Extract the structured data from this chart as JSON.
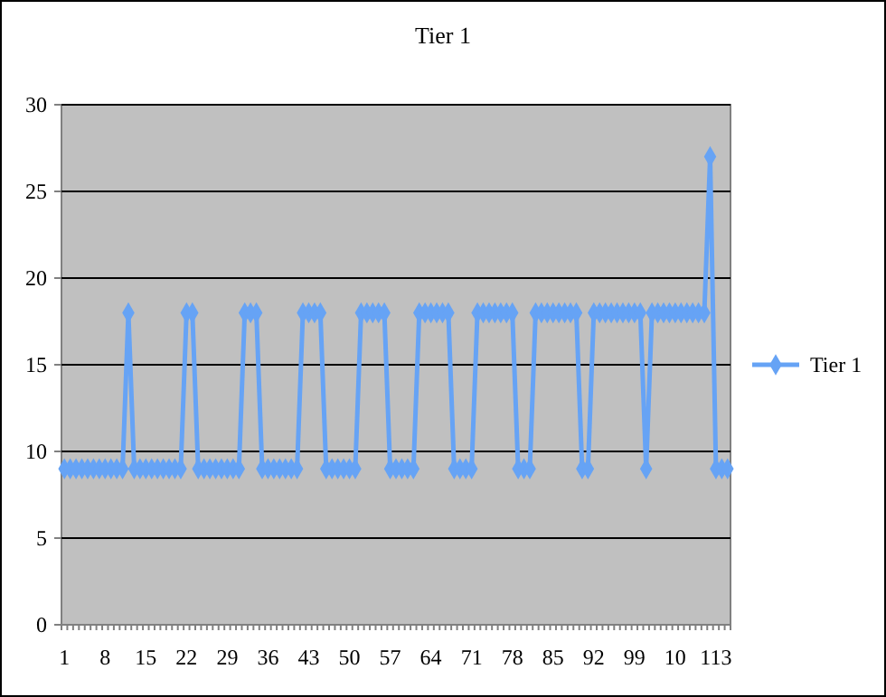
{
  "chart_data": {
    "type": "line",
    "title": "Tier 1",
    "categories": [
      "1",
      null,
      null,
      null,
      null,
      null,
      null,
      "8",
      null,
      null,
      null,
      null,
      null,
      null,
      "15",
      null,
      null,
      null,
      null,
      null,
      null,
      "22",
      null,
      null,
      null,
      null,
      null,
      null,
      "29",
      null,
      null,
      null,
      null,
      null,
      null,
      "36",
      null,
      null,
      null,
      null,
      null,
      null,
      "43",
      null,
      null,
      null,
      null,
      null,
      null,
      "50",
      null,
      null,
      null,
      null,
      null,
      null,
      "57",
      null,
      null,
      null,
      null,
      null,
      null,
      "64",
      null,
      null,
      null,
      null,
      null,
      null,
      "71",
      null,
      null,
      null,
      null,
      null,
      null,
      "78",
      null,
      null,
      null,
      null,
      null,
      null,
      "85",
      null,
      null,
      null,
      null,
      null,
      null,
      "92",
      null,
      null,
      null,
      null,
      null,
      null,
      "99",
      null,
      null,
      null,
      null,
      null,
      null,
      "10",
      null,
      null,
      null,
      null,
      null,
      null,
      "113",
      null,
      null
    ],
    "series": [
      {
        "name": "Tier 1",
        "color": "#66a3f5",
        "values": [
          9,
          9,
          9,
          9,
          9,
          9,
          9,
          9,
          9,
          9,
          9,
          18,
          9,
          9,
          9,
          9,
          9,
          9,
          9,
          9,
          9,
          18,
          18,
          9,
          9,
          9,
          9,
          9,
          9,
          9,
          9,
          18,
          18,
          18,
          9,
          9,
          9,
          9,
          9,
          9,
          9,
          18,
          18,
          18,
          18,
          9,
          9,
          9,
          9,
          9,
          9,
          18,
          18,
          18,
          18,
          18,
          9,
          9,
          9,
          9,
          9,
          18,
          18,
          18,
          18,
          18,
          18,
          9,
          9,
          9,
          9,
          18,
          18,
          18,
          18,
          18,
          18,
          18,
          9,
          9,
          9,
          18,
          18,
          18,
          18,
          18,
          18,
          18,
          18,
          9,
          9,
          18,
          18,
          18,
          18,
          18,
          18,
          18,
          18,
          18,
          9,
          18,
          18,
          18,
          18,
          18,
          18,
          18,
          18,
          18,
          18,
          27,
          9,
          9,
          9
        ]
      }
    ],
    "ylim": [
      0,
      30
    ],
    "yticks": [
      0,
      5,
      10,
      15,
      20,
      25,
      30
    ],
    "grid": "y",
    "legend": "right",
    "marker": "diamond",
    "line_style": "solid"
  }
}
